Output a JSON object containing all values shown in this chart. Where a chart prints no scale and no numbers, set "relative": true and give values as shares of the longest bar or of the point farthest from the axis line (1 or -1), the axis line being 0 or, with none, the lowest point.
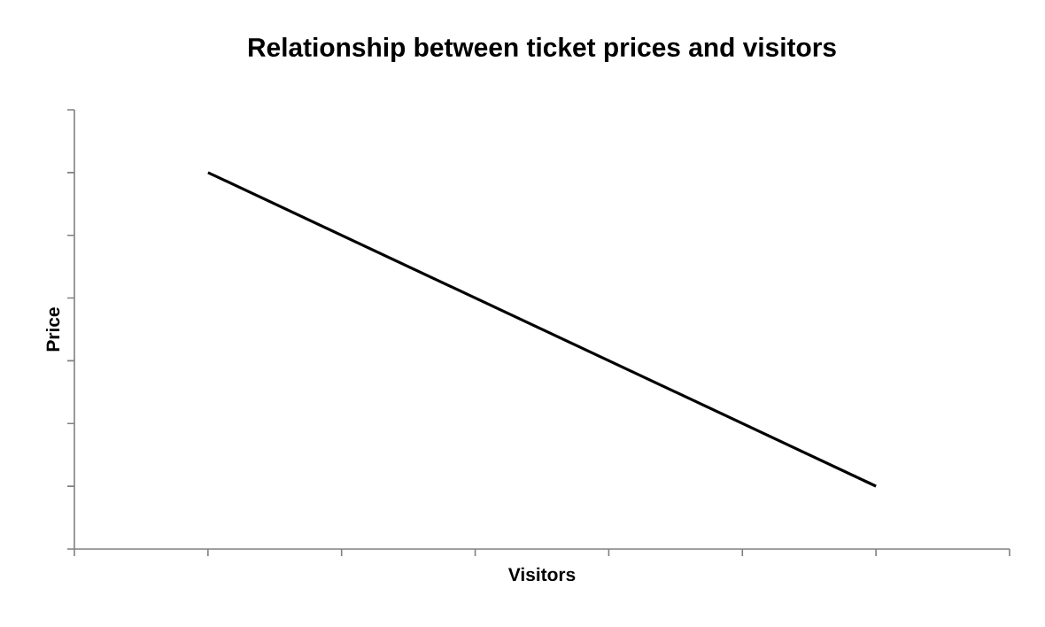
{
  "chart_data": {
    "type": "line",
    "title": "Relationship between ticket prices and visitors",
    "xlabel": "Visitors",
    "ylabel": "Price",
    "relative": true,
    "categories": [
      null,
      null
    ],
    "series": [
      {
        "color": "#000000",
        "values": [
          1,
          0.167
        ]
      }
    ]
  }
}
